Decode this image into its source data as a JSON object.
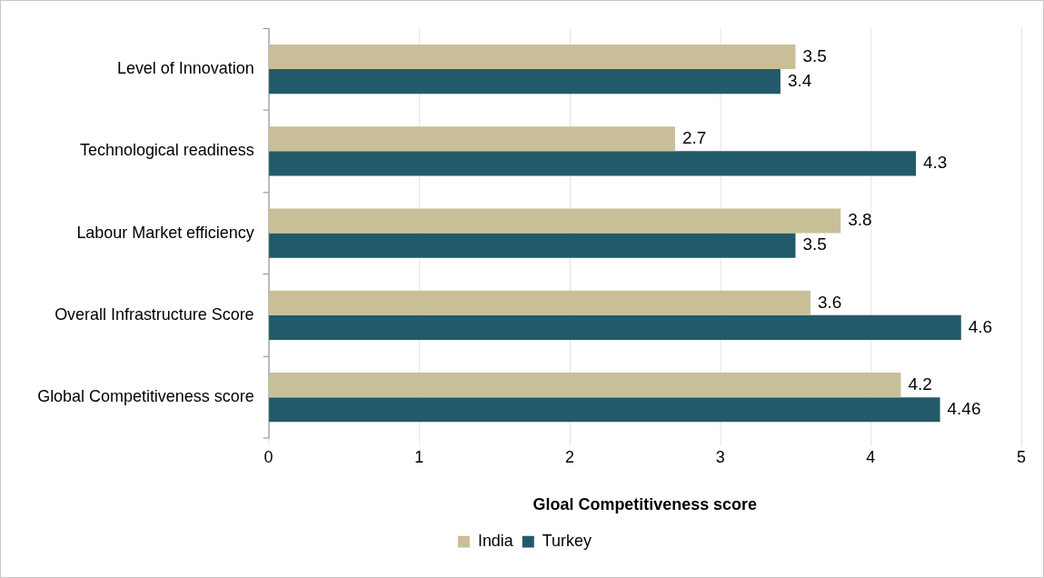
{
  "chart_data": {
    "type": "bar",
    "orientation": "horizontal",
    "categories": [
      "Level of Innovation",
      "Technological readiness",
      "Labour Market efficiency",
      "Overall Infrastructure Score",
      "Global Competitiveness score"
    ],
    "series": [
      {
        "name": "India",
        "color": "#c8bf98",
        "values": [
          3.5,
          2.7,
          3.8,
          3.6,
          4.2
        ]
      },
      {
        "name": "Turkey",
        "color": "#235a69",
        "values": [
          3.4,
          4.3,
          3.5,
          4.6,
          4.46
        ]
      }
    ],
    "xlabel": "Gloal Competitiveness score",
    "xlim": [
      0,
      5
    ],
    "xticks": [
      0,
      1,
      2,
      3,
      4,
      5
    ],
    "grid": "x",
    "legend": "bottom",
    "data_labels": true
  }
}
